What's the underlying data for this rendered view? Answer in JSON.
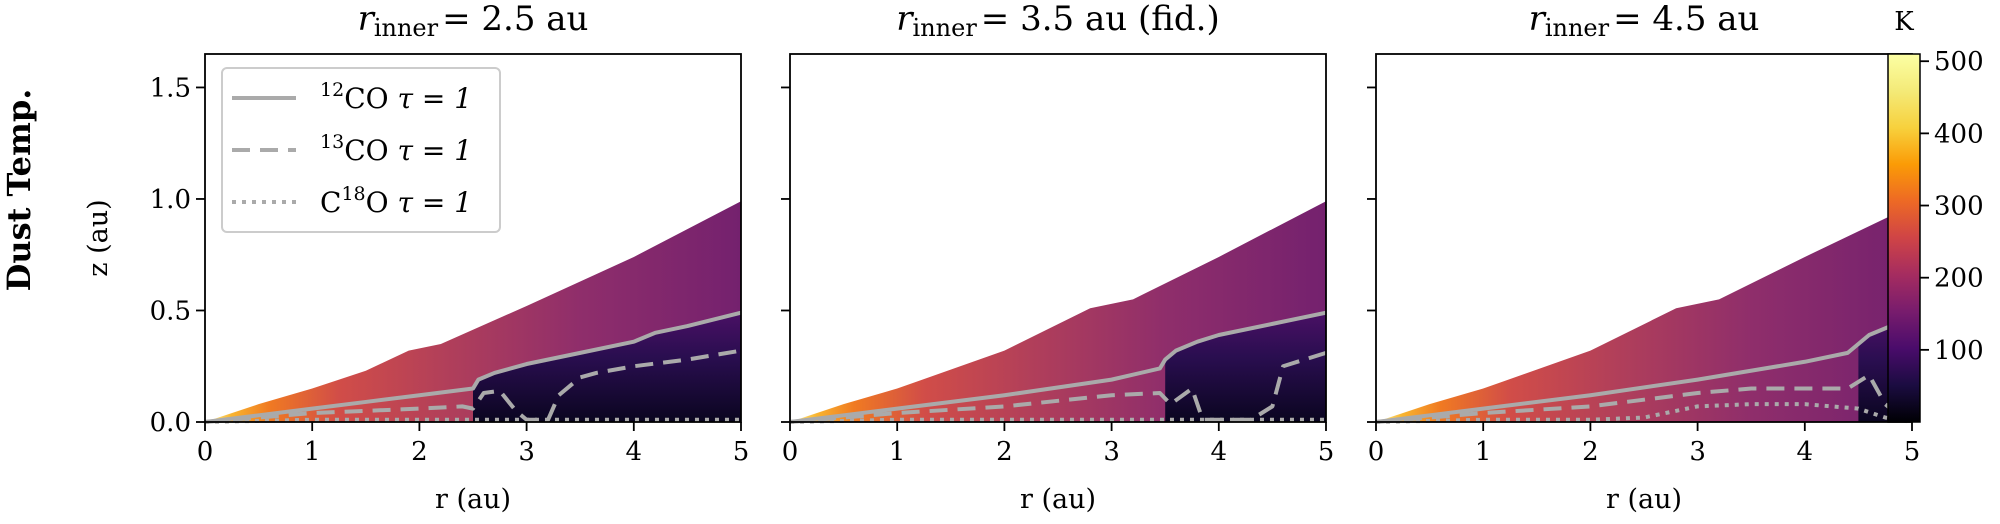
{
  "row_label": "Dust Temp.",
  "panels": [
    {
      "r_symbol": "r",
      "r_sub": "inner",
      "title_rest": "= 2.5 au"
    },
    {
      "r_symbol": "r",
      "r_sub": "inner",
      "title_rest": "= 3.5 au (fid.)"
    },
    {
      "r_symbol": "r",
      "r_sub": "inner",
      "title_rest": "= 4.5 au"
    }
  ],
  "xlabel": "r (au)",
  "ylabel": "z (au)",
  "x_ticks": [
    "0",
    "1",
    "2",
    "3",
    "4",
    "5"
  ],
  "y_ticks": [
    "0.0",
    "0.5",
    "1.0",
    "1.5"
  ],
  "colorbar": {
    "unit_label": "K",
    "ticks": [
      "100",
      "200",
      "300",
      "400",
      "500"
    ],
    "range": [
      0,
      510
    ],
    "colormap": "inferno"
  },
  "legend": [
    {
      "sup": "12",
      "label": "CO",
      "tau": "τ = 1",
      "style": "solid"
    },
    {
      "sup": "13",
      "label": "CO",
      "tau": "τ = 1",
      "style": "dashed"
    },
    {
      "sup": "18",
      "pre": "C",
      "label": "O",
      "tau": "τ = 1",
      "style": "dotted"
    }
  ],
  "colors": {
    "contour": "#aaaaaa",
    "axis": "#000000"
  },
  "chart_data": [
    {
      "type": "heatmap",
      "title": "r_inner = 2.5 au",
      "xlabel": "r (au)",
      "ylabel": "z (au)",
      "xlim": [
        0,
        5
      ],
      "ylim": [
        0,
        1.65
      ],
      "surface": [
        [
          0,
          0
        ],
        [
          0.5,
          0.08
        ],
        [
          1,
          0.15
        ],
        [
          1.5,
          0.23
        ],
        [
          1.9,
          0.32
        ],
        [
          2.2,
          0.35
        ],
        [
          3,
          0.52
        ],
        [
          4,
          0.74
        ],
        [
          5,
          0.99
        ]
      ],
      "temperature_inner_K": 500,
      "temperature_outer_surface_K": 170,
      "series": [
        {
          "name": "12CO τ = 1",
          "style": "solid",
          "x": [
            0,
            0.5,
            1,
            1.5,
            2,
            2.5,
            2.55,
            2.7,
            3,
            3.5,
            4,
            4.2,
            4.5,
            5
          ],
          "y": [
            0,
            0.03,
            0.06,
            0.09,
            0.12,
            0.15,
            0.19,
            0.22,
            0.26,
            0.31,
            0.36,
            0.4,
            0.43,
            0.49
          ]
        },
        {
          "name": "13CO τ = 1",
          "style": "dashed",
          "x": [
            0,
            0.5,
            1,
            1.5,
            2,
            2.4,
            2.5,
            2.6,
            2.75,
            2.9,
            3.0,
            3.2,
            3.3,
            3.5,
            3.65,
            4,
            4.5,
            5
          ],
          "y": [
            0,
            0.02,
            0.04,
            0.05,
            0.06,
            0.07,
            0.06,
            0.13,
            0.14,
            0.05,
            0.01,
            0.01,
            0.12,
            0.2,
            0.22,
            0.25,
            0.28,
            0.32
          ]
        },
        {
          "name": "C18O τ = 1",
          "style": "dotted",
          "x": [
            0,
            1,
            2,
            2.5,
            3,
            4,
            5
          ],
          "y": [
            0,
            0.01,
            0.01,
            0.01,
            0.01,
            0.01,
            0.01
          ]
        }
      ]
    },
    {
      "type": "heatmap",
      "title": "r_inner = 3.5 au (fid.)",
      "xlabel": "r (au)",
      "ylabel": "z (au)",
      "xlim": [
        0,
        5
      ],
      "ylim": [
        0,
        1.65
      ],
      "surface": [
        [
          0,
          0
        ],
        [
          0.5,
          0.08
        ],
        [
          1,
          0.15
        ],
        [
          2,
          0.32
        ],
        [
          2.8,
          0.51
        ],
        [
          3.2,
          0.55
        ],
        [
          4,
          0.74
        ],
        [
          5,
          0.99
        ]
      ],
      "temperature_inner_K": 500,
      "temperature_outer_surface_K": 170,
      "series": [
        {
          "name": "12CO τ = 1",
          "style": "solid",
          "x": [
            0,
            0.5,
            1,
            2,
            3,
            3.45,
            3.5,
            3.6,
            3.8,
            4,
            4.5,
            5
          ],
          "y": [
            0,
            0.03,
            0.06,
            0.12,
            0.19,
            0.24,
            0.28,
            0.32,
            0.36,
            0.39,
            0.44,
            0.49
          ]
        },
        {
          "name": "13CO τ = 1",
          "style": "dashed",
          "x": [
            0,
            0.5,
            1,
            2,
            3,
            3.45,
            3.55,
            3.75,
            3.85,
            4.1,
            4.3,
            4.5,
            4.6,
            5
          ],
          "y": [
            0,
            0.02,
            0.04,
            0.07,
            0.12,
            0.13,
            0.08,
            0.15,
            0.01,
            0.01,
            0.01,
            0.07,
            0.25,
            0.31
          ]
        },
        {
          "name": "C18O τ = 1",
          "style": "dotted",
          "x": [
            0,
            1,
            2,
            3,
            4,
            5
          ],
          "y": [
            0,
            0.01,
            0.01,
            0.01,
            0.01,
            0.01
          ]
        }
      ]
    },
    {
      "type": "heatmap",
      "title": "r_inner = 4.5 au",
      "xlabel": "r (au)",
      "ylabel": "z (au)",
      "xlim": [
        0,
        5
      ],
      "ylim": [
        0,
        1.65
      ],
      "surface": [
        [
          0,
          0
        ],
        [
          0.5,
          0.08
        ],
        [
          1,
          0.15
        ],
        [
          2,
          0.32
        ],
        [
          2.8,
          0.51
        ],
        [
          3.2,
          0.55
        ],
        [
          4,
          0.74
        ],
        [
          5,
          0.97
        ]
      ],
      "temperature_inner_K": 500,
      "temperature_outer_surface_K": 170,
      "series": [
        {
          "name": "12CO τ = 1",
          "style": "solid",
          "x": [
            0,
            0.5,
            1,
            2,
            3,
            4,
            4.4,
            4.6,
            4.8,
            5
          ],
          "y": [
            0,
            0.03,
            0.06,
            0.12,
            0.19,
            0.27,
            0.31,
            0.39,
            0.43,
            0.46
          ]
        },
        {
          "name": "13CO τ = 1",
          "style": "dashed",
          "x": [
            0,
            0.5,
            1,
            2,
            3,
            3.5,
            4,
            4.4,
            4.6,
            4.75,
            4.9,
            5
          ],
          "y": [
            0,
            0.02,
            0.04,
            0.07,
            0.13,
            0.15,
            0.15,
            0.15,
            0.21,
            0.08,
            0.02,
            0.01
          ]
        },
        {
          "name": "C18O τ = 1",
          "style": "dotted",
          "x": [
            0,
            1,
            2,
            2.5,
            3,
            3.5,
            4,
            4.5,
            4.75,
            5
          ],
          "y": [
            0,
            0.01,
            0.01,
            0.02,
            0.07,
            0.08,
            0.08,
            0.06,
            0.02,
            0.0
          ]
        }
      ]
    }
  ]
}
